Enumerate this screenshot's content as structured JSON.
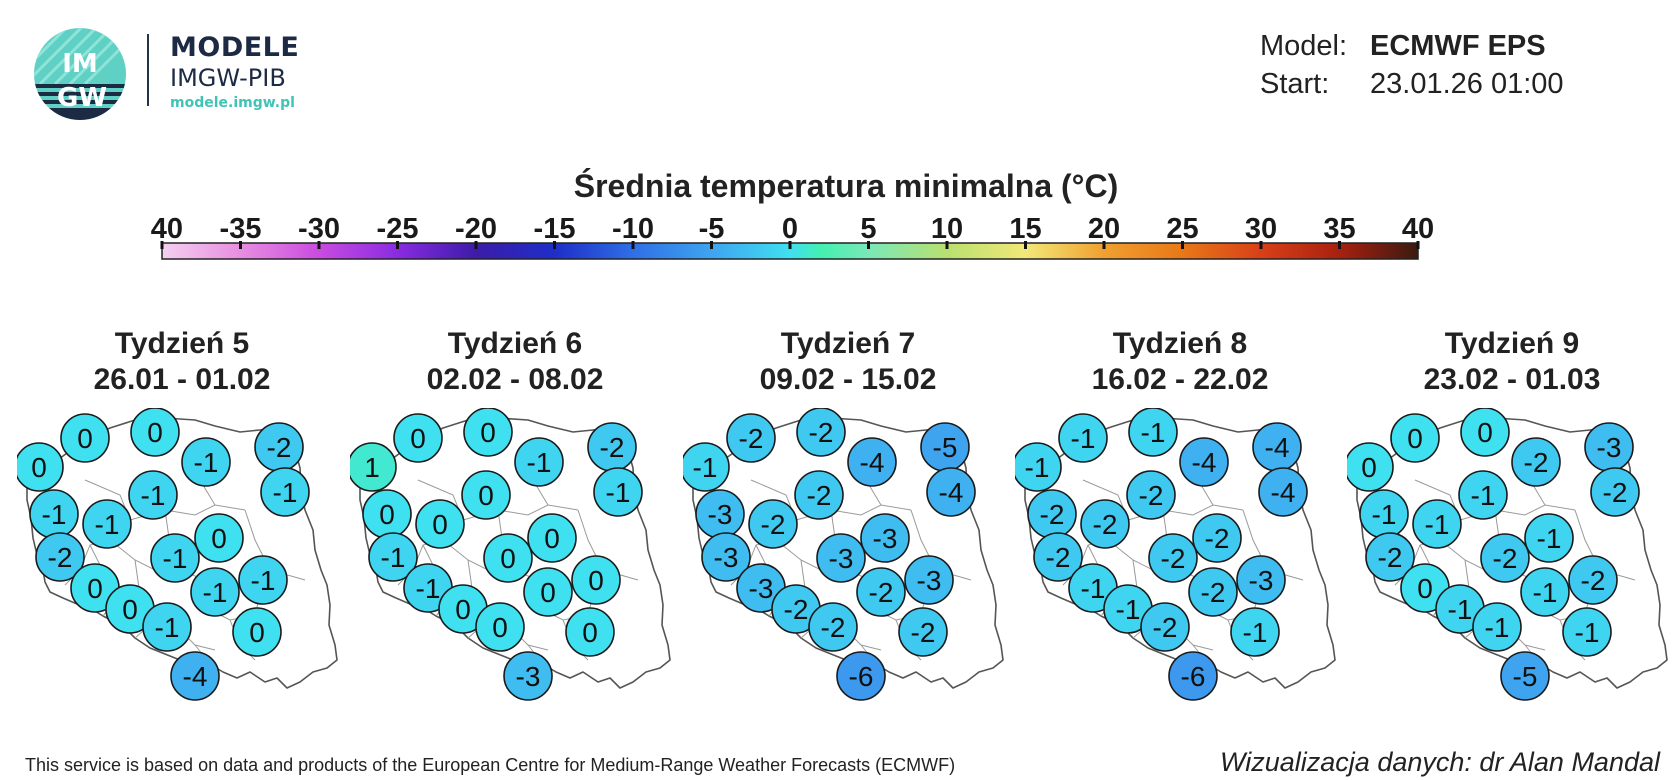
{
  "header": {
    "logo_text": "IMGW",
    "brand_line1": "MODELE",
    "brand_line2": "IMGW-PIB",
    "brand_url": "modele.imgw.pl",
    "model_label": "Model:",
    "model_value": "ECMWF EPS",
    "start_label": "Start:",
    "start_value": "23.01.26 01:00"
  },
  "title": "Średnia temperatura minimalna (°C)",
  "scale": {
    "ticks": [
      "-40",
      "-35",
      "-30",
      "-25",
      "-20",
      "-15",
      "-10",
      "-5",
      "0",
      "5",
      "10",
      "15",
      "20",
      "25",
      "30",
      "35",
      "40"
    ],
    "min": -40,
    "max": 40,
    "colors": {
      "-40": "#f4d0f0",
      "-35": "#e88ee0",
      "-30": "#c84ce0",
      "-25": "#8a2be2",
      "-20": "#3c1ca8",
      "-15": "#1e2ec8",
      "-10": "#2f6fe6",
      "-5": "#3fa4f0",
      "0": "#3fe0f0",
      "2": "#44f0b0",
      "5": "#7ae8b8",
      "10": "#b8e070",
      "15": "#f2e878",
      "20": "#f0a030",
      "25": "#e87818",
      "30": "#d84018",
      "35": "#a82010",
      "40": "#3a1a10"
    }
  },
  "weeks": [
    {
      "label": "Tydzień 5",
      "dates": "26.01 - 01.02",
      "values": [
        "0",
        "0",
        "0",
        "-1",
        "-2",
        "-1",
        "-1",
        "-1",
        "-1",
        "0",
        "-2",
        "-1",
        "-1",
        "0",
        "0",
        "-1",
        "-1",
        "0",
        "-4"
      ]
    },
    {
      "label": "Tydzień 6",
      "dates": "02.02 - 08.02",
      "values": [
        "0",
        "0",
        "1",
        "-1",
        "-2",
        "-1",
        "0",
        "0",
        "0",
        "0",
        "-1",
        "0",
        "0",
        "-1",
        "0",
        "0",
        "0",
        "0",
        "-3"
      ]
    },
    {
      "label": "Tydzień 7",
      "dates": "09.02 - 15.02",
      "values": [
        "-2",
        "-2",
        "-1",
        "-4",
        "-5",
        "-4",
        "-3",
        "-2",
        "-2",
        "-3",
        "-3",
        "-3",
        "-3",
        "-3",
        "-2",
        "-2",
        "-2",
        "-2",
        "-6"
      ]
    },
    {
      "label": "Tydzień 8",
      "dates": "16.02 - 22.02",
      "values": [
        "-1",
        "-1",
        "-1",
        "-4",
        "-4",
        "-4",
        "-2",
        "-2",
        "-2",
        "-2",
        "-2",
        "-2",
        "-3",
        "-1",
        "-1",
        "-2",
        "-2",
        "-1",
        "-6"
      ]
    },
    {
      "label": "Tydzień 9",
      "dates": "23.02 - 01.03",
      "values": [
        "0",
        "0",
        "0",
        "-2",
        "-3",
        "-2",
        "-1",
        "-1",
        "-1",
        "-1",
        "-2",
        "-2",
        "-2",
        "0",
        "-1",
        "-1",
        "-1",
        "-1",
        "-5"
      ]
    }
  ],
  "footer": {
    "left": "This service is based on data and products of the European Centre for Medium-Range Weather Forecasts (ECMWF)",
    "right": "Wizualizacja danych: dr Alan Mandal"
  }
}
